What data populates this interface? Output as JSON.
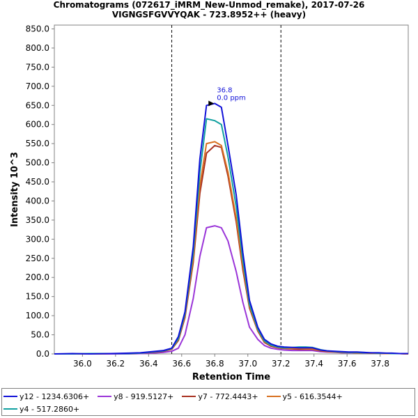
{
  "chart_data": {
    "type": "line",
    "title": "Chromatograms (072617_iMRM_New-Unmod_remake), 2017-07-26",
    "subtitle": "VIGNGSFGVVYQAK - 723.8952++ (heavy)",
    "xlabel": "Retention Time",
    "ylabel": "Intensity 10^3",
    "xlim": [
      35.83,
      37.97
    ],
    "ylim": [
      0,
      860
    ],
    "x_ticks": [
      "36.0",
      "36.2",
      "36.4",
      "36.6",
      "36.8",
      "37.0",
      "37.2",
      "37.4",
      "37.6",
      "37.8"
    ],
    "y_ticks": [
      "0.0",
      "50.0",
      "100.0",
      "150.0",
      "200.0",
      "250.0",
      "300.0",
      "350.0",
      "400.0",
      "450.0",
      "500.0",
      "550.0",
      "600.0",
      "650.0",
      "700.0",
      "750.0",
      "800.0",
      "850.0"
    ],
    "vlines": [
      36.54,
      37.2
    ],
    "annotation": {
      "x": 36.8,
      "y": 655,
      "label_rt": "36.8",
      "label_ppm": "0.0 ppm"
    },
    "x": [
      35.83,
      35.94,
      36.05,
      36.17,
      36.28,
      36.35,
      36.42,
      36.49,
      36.54,
      36.58,
      36.62,
      36.67,
      36.71,
      36.75,
      36.8,
      36.84,
      36.88,
      36.93,
      36.97,
      37.01,
      37.06,
      37.1,
      37.14,
      37.18,
      37.22,
      37.27,
      37.31,
      37.35,
      37.39,
      37.44,
      37.48,
      37.53,
      37.57,
      37.61,
      37.66,
      37.7,
      37.74,
      37.79,
      37.83,
      37.87,
      37.92,
      37.97
    ],
    "series": [
      {
        "name": "y12 - 1234.6306+",
        "color": "#1010d8",
        "values": [
          0,
          1,
          0,
          1,
          2,
          3,
          6,
          9,
          15,
          45,
          110,
          280,
          510,
          650,
          655,
          645,
          545,
          415,
          265,
          140,
          70,
          38,
          26,
          20,
          18,
          17,
          16,
          16,
          16,
          10,
          8,
          7,
          6,
          5,
          5,
          4,
          3,
          3,
          2,
          2,
          1,
          1
        ]
      },
      {
        "name": "y8 - 919.5127+",
        "color": "#9a34d8",
        "values": [
          0,
          0,
          0,
          0,
          0,
          1,
          2,
          4,
          7,
          15,
          50,
          145,
          255,
          330,
          335,
          330,
          295,
          215,
          135,
          70,
          38,
          22,
          15,
          12,
          10,
          9,
          9,
          9,
          9,
          6,
          5,
          4,
          3,
          3,
          3,
          2,
          2,
          2,
          1,
          1,
          1,
          0
        ]
      },
      {
        "name": "y7 - 772.4443+",
        "color": "#a83020",
        "values": [
          0,
          0,
          0,
          1,
          1,
          2,
          4,
          7,
          12,
          35,
          95,
          240,
          420,
          525,
          545,
          540,
          465,
          345,
          220,
          120,
          60,
          30,
          20,
          16,
          14,
          13,
          12,
          12,
          12,
          8,
          6,
          5,
          4,
          4,
          3,
          3,
          2,
          2,
          1,
          1,
          1,
          0
        ]
      },
      {
        "name": "y5 - 616.3544+",
        "color": "#d87020",
        "values": [
          0,
          0,
          0,
          1,
          1,
          2,
          5,
          8,
          13,
          38,
          100,
          250,
          440,
          550,
          555,
          545,
          475,
          355,
          230,
          125,
          62,
          32,
          22,
          17,
          15,
          14,
          14,
          13,
          13,
          9,
          7,
          5,
          4,
          4,
          3,
          3,
          2,
          2,
          1,
          1,
          1,
          0
        ]
      },
      {
        "name": "y4 - 517.2860+",
        "color": "#10a0a0",
        "values": [
          0,
          0,
          1,
          1,
          1,
          2,
          5,
          8,
          14,
          40,
          105,
          265,
          475,
          615,
          610,
          600,
          515,
          385,
          245,
          130,
          65,
          34,
          23,
          18,
          16,
          17,
          18,
          18,
          17,
          11,
          8,
          6,
          5,
          4,
          4,
          3,
          3,
          2,
          2,
          1,
          1,
          1
        ]
      }
    ]
  }
}
